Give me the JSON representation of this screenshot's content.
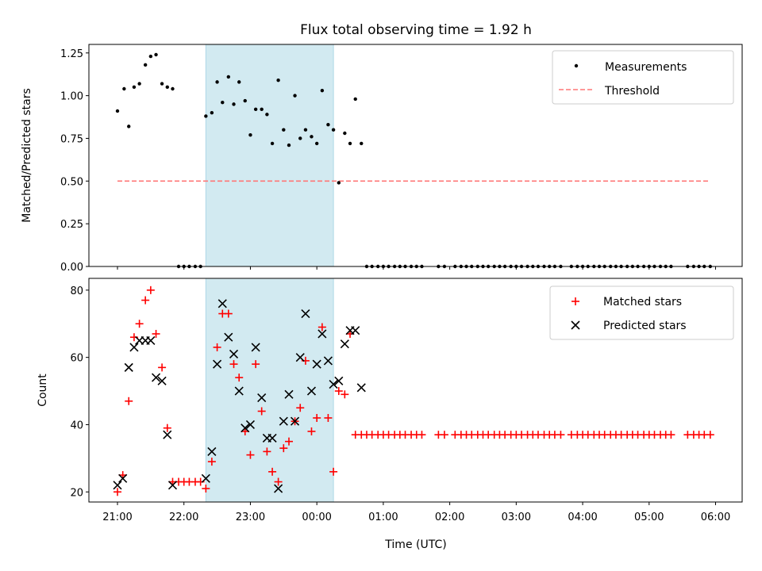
{
  "chart_data": [
    {
      "type": "scatter",
      "panel": "top",
      "title": "Flux total observing time = 1.92 h",
      "xlabel": "",
      "ylabel": "Matched/Predicted stars",
      "xlim": [
        20.57,
        30.4
      ],
      "ylim": [
        0,
        1.3
      ],
      "y_ticks": [
        0,
        0.25,
        0.5,
        0.75,
        1.0,
        1.25
      ],
      "y_tick_labels": [
        "0.00",
        "0.25",
        "0.50",
        "0.75",
        "1.00",
        "1.25"
      ],
      "shaded_interval": [
        22.33,
        24.25
      ],
      "shade_color": "#add8e6",
      "legend": {
        "position": "top-right",
        "entries": [
          "Measurements",
          "Threshold"
        ]
      },
      "threshold": {
        "name": "Threshold",
        "y": 0.5,
        "x_range": [
          21.0,
          29.92
        ],
        "color": "#ff7777"
      },
      "series": [
        {
          "name": "Measurements",
          "color": "#000000",
          "x": [
            21.0,
            21.1,
            21.17,
            21.25,
            21.33,
            21.42,
            21.5,
            21.58,
            21.67,
            21.75,
            21.83,
            21.92,
            22.0,
            22.08,
            22.17,
            22.25,
            22.33,
            22.42,
            22.5,
            22.58,
            22.67,
            22.75,
            22.83,
            22.92,
            23.0,
            23.08,
            23.17,
            23.25,
            23.33,
            23.42,
            23.5,
            23.58,
            23.67,
            23.75,
            23.83,
            23.92,
            24.0,
            24.08,
            24.17,
            24.25,
            24.33,
            24.42,
            24.5,
            24.58,
            24.67,
            24.75,
            24.83,
            24.92,
            25.0,
            25.08,
            25.17,
            25.25,
            25.33,
            25.42,
            25.5,
            25.58,
            25.83,
            25.92,
            26.08,
            26.17,
            26.25,
            26.33,
            26.42,
            26.5,
            26.58,
            26.67,
            26.75,
            26.83,
            26.92,
            27.0,
            27.08,
            27.17,
            27.25,
            27.33,
            27.42,
            27.5,
            27.58,
            27.67,
            27.83,
            27.92,
            28.0,
            28.08,
            28.17,
            28.25,
            28.33,
            28.42,
            28.5,
            28.58,
            28.67,
            28.75,
            28.83,
            28.92,
            29.0,
            29.08,
            29.17,
            29.25,
            29.33,
            29.58,
            29.67,
            29.75,
            29.83,
            29.92
          ],
          "y": [
            0.91,
            1.04,
            0.82,
            1.05,
            1.07,
            1.18,
            1.23,
            1.24,
            1.07,
            1.05,
            1.04,
            0,
            0,
            0,
            0,
            0,
            0.88,
            0.9,
            1.08,
            0.96,
            1.11,
            0.95,
            1.08,
            0.97,
            0.77,
            0.92,
            0.92,
            0.89,
            0.72,
            1.09,
            0.8,
            0.71,
            1.0,
            0.75,
            0.8,
            0.76,
            0.72,
            1.03,
            0.83,
            0.8,
            0.49,
            0.78,
            0.72,
            0.98,
            0.72,
            0,
            0,
            0,
            0,
            0,
            0,
            0,
            0,
            0,
            0,
            0,
            0,
            0,
            0,
            0,
            0,
            0,
            0,
            0,
            0,
            0,
            0,
            0,
            0,
            0,
            0,
            0,
            0,
            0,
            0,
            0,
            0,
            0,
            0,
            0,
            0,
            0,
            0,
            0,
            0,
            0,
            0,
            0,
            0,
            0,
            0,
            0,
            0,
            0,
            0,
            0,
            0,
            0,
            0,
            0,
            0,
            0
          ]
        }
      ]
    },
    {
      "type": "scatter",
      "panel": "bottom",
      "title": "",
      "xlabel": "Time (UTC)",
      "ylabel": "Count",
      "xlim": [
        20.57,
        30.4
      ],
      "ylim": [
        17,
        83.5
      ],
      "y_ticks": [
        20,
        40,
        60,
        80
      ],
      "y_tick_labels": [
        "20",
        "40",
        "60",
        "80"
      ],
      "x_ticks": [
        21,
        22,
        23,
        24,
        25,
        26,
        27,
        28,
        29,
        30
      ],
      "x_tick_labels": [
        "21:00",
        "22:00",
        "23:00",
        "00:00",
        "01:00",
        "02:00",
        "03:00",
        "04:00",
        "05:00",
        "06:00"
      ],
      "shaded_interval": [
        22.33,
        24.25
      ],
      "shade_color": "#add8e6",
      "legend": {
        "position": "top-right",
        "entries": [
          "Matched stars",
          "Predicted stars"
        ]
      },
      "series": [
        {
          "name": "Matched stars",
          "marker": "plus",
          "color": "#ff0000",
          "x": [
            21.0,
            21.08,
            21.17,
            21.25,
            21.33,
            21.42,
            21.5,
            21.58,
            21.67,
            21.75,
            21.83,
            21.92,
            22.0,
            22.08,
            22.17,
            22.25,
            22.33,
            22.42,
            22.5,
            22.58,
            22.67,
            22.75,
            22.83,
            22.92,
            23.0,
            23.08,
            23.17,
            23.25,
            23.33,
            23.42,
            23.5,
            23.58,
            23.67,
            23.75,
            23.83,
            23.92,
            24.0,
            24.08,
            24.17,
            24.25,
            24.33,
            24.42,
            24.5,
            24.58,
            24.67,
            24.75,
            24.83,
            24.92,
            25.0,
            25.08,
            25.17,
            25.25,
            25.33,
            25.42,
            25.5,
            25.58,
            25.83,
            25.92,
            26.08,
            26.17,
            26.25,
            26.33,
            26.42,
            26.5,
            26.58,
            26.67,
            26.75,
            26.83,
            26.92,
            27.0,
            27.08,
            27.17,
            27.25,
            27.33,
            27.42,
            27.5,
            27.58,
            27.67,
            27.83,
            27.92,
            28.0,
            28.08,
            28.17,
            28.25,
            28.33,
            28.42,
            28.5,
            28.58,
            28.67,
            28.75,
            28.83,
            28.92,
            29.0,
            29.08,
            29.17,
            29.25,
            29.33,
            29.58,
            29.67,
            29.75,
            29.83,
            29.92
          ],
          "y": [
            20,
            25,
            47,
            66,
            70,
            77,
            80,
            67,
            57,
            39,
            23,
            23,
            23,
            23,
            23,
            23,
            21,
            29,
            63,
            73,
            73,
            58,
            54,
            38,
            31,
            58,
            44,
            32,
            26,
            23,
            33,
            35,
            41,
            45,
            59,
            38,
            42,
            69,
            42,
            26,
            50,
            49,
            67,
            37,
            37,
            37,
            37,
            37,
            37,
            37,
            37,
            37,
            37,
            37,
            37,
            37,
            37,
            37,
            37,
            37,
            37,
            37,
            37,
            37,
            37,
            37,
            37,
            37,
            37,
            37,
            37,
            37,
            37,
            37,
            37,
            37,
            37,
            37,
            37,
            37,
            37,
            37,
            37,
            37,
            37,
            37,
            37,
            37,
            37,
            37,
            37,
            37,
            37,
            37,
            37,
            37,
            37,
            37,
            37,
            37,
            37,
            37
          ]
        },
        {
          "name": "Predicted stars",
          "marker": "x",
          "color": "#000000",
          "x": [
            21.0,
            21.08,
            21.17,
            21.25,
            21.33,
            21.42,
            21.5,
            21.58,
            21.67,
            21.75,
            21.83,
            22.33,
            22.42,
            22.5,
            22.58,
            22.67,
            22.75,
            22.83,
            22.92,
            23.0,
            23.08,
            23.17,
            23.25,
            23.33,
            23.42,
            23.5,
            23.58,
            23.67,
            23.75,
            23.83,
            23.92,
            24.0,
            24.08,
            24.17,
            24.25,
            24.33,
            24.42,
            24.5,
            24.58,
            24.67
          ],
          "y": [
            22,
            24,
            57,
            63,
            65,
            65,
            65,
            54,
            53,
            37,
            22,
            24,
            32,
            58,
            76,
            66,
            61,
            50,
            39,
            40,
            63,
            48,
            36,
            36,
            21,
            41,
            49,
            41,
            60,
            73,
            50,
            58,
            67,
            59,
            52,
            53,
            64,
            68,
            68,
            51
          ]
        }
      ]
    }
  ]
}
